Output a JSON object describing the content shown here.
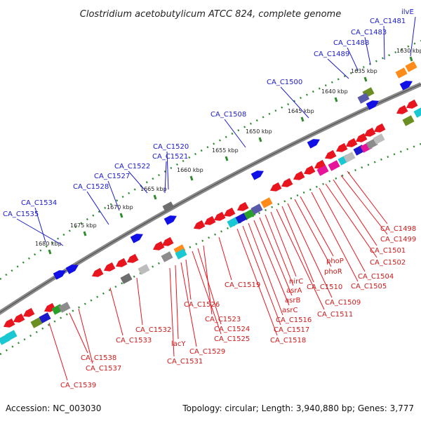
{
  "title": "Clostridium acetobutylicum ATCC 824, complete genome",
  "accession": "Accession: NC_003030",
  "topology": "Topology: circular; Length: 3,940,880 bp; Genes: 3,777",
  "colors": {
    "backbone": "#7a7a7a",
    "ticks": "#2e8b2e",
    "forward_label": "#1a1acc",
    "reverse_label": "#cc1a1a"
  },
  "ticks": [
    "1630 kbp",
    "1635 kbp",
    "1640 kbp",
    "1645 kbp",
    "1650 kbp",
    "1655 kbp",
    "1660 kbp",
    "1665 kbp",
    "1670 kbp",
    "1675 kbp",
    "1680 kbp"
  ],
  "forward_labels": [
    "ilvE",
    "CA_C1481",
    "CA_C1483",
    "CA_C1488",
    "CA_C1489",
    "CA_C1500",
    "CA_C1508",
    "CA_C1520",
    "CA_C1521",
    "CA_C1522",
    "CA_C1527",
    "CA_C1528",
    "CA_C1534",
    "CA_C1535"
  ],
  "reverse_labels": [
    "CA_C1498",
    "CA_C1499",
    "CA_C1501",
    "CA_C1502",
    "CA_C1504",
    "CA_C1505",
    "phoP",
    "phoR",
    "CA_C1509",
    "CA_C1510",
    "CA_C1511",
    "nirC",
    "asrA",
    "asrB",
    "asrC",
    "CA_C1516",
    "CA_C1517",
    "CA_C1518",
    "CA_C1519",
    "CA_C1523",
    "CA_C1524",
    "CA_C1525",
    "CA_C1526",
    "CA_C1529",
    "lacY",
    "CA_C1531",
    "CA_C1532",
    "CA_C1533",
    "CA_C1537",
    "CA_C1538",
    "CA_C1539"
  ]
}
